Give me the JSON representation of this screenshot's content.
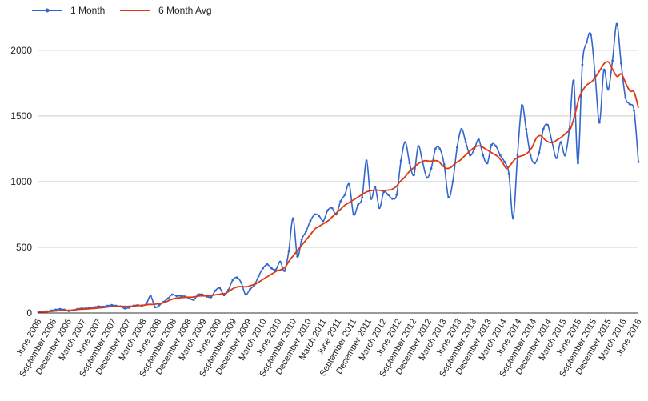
{
  "chart_data": {
    "type": "line",
    "title": "",
    "xlabel": "",
    "ylabel": "",
    "ylim": [
      0,
      2200
    ],
    "yticks": [
      0,
      500,
      1000,
      1500,
      2000
    ],
    "grid": true,
    "legend_position": "top-left",
    "x_tick_labels": [
      "June 2006",
      "September 2006",
      "December 2006",
      "March 2007",
      "June 2007",
      "September 2007",
      "December 2007",
      "March 2008",
      "June 2008",
      "September 2008",
      "December 2008",
      "March 2009",
      "June 2009",
      "September 2009",
      "December 2009",
      "March 2010",
      "June 2010",
      "September 2010",
      "December 2010",
      "March 2011",
      "June 2011",
      "September 2011",
      "December 2011",
      "March 2012",
      "June 2012",
      "September 2012",
      "December 2012",
      "March 2013",
      "June 2013",
      "September 2013",
      "December 2013",
      "March 2014",
      "June 2014",
      "September 2014",
      "December 2014",
      "March 2015",
      "June 2015",
      "September 2015",
      "December 2015",
      "March 2016",
      "June 2016"
    ],
    "series": [
      {
        "name": "1 Month",
        "color": "#3366cc",
        "values": [
          5,
          10,
          12,
          18,
          25,
          30,
          25,
          15,
          20,
          30,
          35,
          35,
          40,
          45,
          50,
          48,
          55,
          60,
          55,
          50,
          35,
          40,
          55,
          60,
          55,
          70,
          130,
          45,
          60,
          85,
          110,
          140,
          130,
          130,
          125,
          110,
          100,
          140,
          140,
          125,
          120,
          170,
          190,
          135,
          175,
          250,
          270,
          230,
          140,
          180,
          210,
          280,
          340,
          370,
          340,
          330,
          390,
          320,
          470,
          720,
          430,
          560,
          620,
          700,
          750,
          740,
          700,
          780,
          800,
          750,
          850,
          900,
          980,
          750,
          820,
          880,
          1160,
          870,
          960,
          800,
          920,
          900,
          870,
          900,
          1160,
          1300,
          1140,
          1050,
          1270,
          1150,
          1030,
          1100,
          1250,
          1250,
          1130,
          880,
          1000,
          1260,
          1400,
          1300,
          1200,
          1250,
          1320,
          1200,
          1140,
          1280,
          1270,
          1200,
          1150,
          1060,
          720,
          1200,
          1580,
          1400,
          1200,
          1140,
          1220,
          1400,
          1430,
          1300,
          1180,
          1300,
          1200,
          1400,
          1770,
          1140,
          1890,
          2060,
          2120,
          1800,
          1450,
          1850,
          1700,
          1920,
          2200,
          1900,
          1640,
          1590,
          1540,
          1150
        ]
      },
      {
        "name": "6 Month Avg",
        "color": "#dc3912",
        "values": [
          5,
          8,
          10,
          12,
          15,
          18,
          20,
          20,
          22,
          25,
          28,
          30,
          32,
          35,
          38,
          40,
          45,
          48,
          50,
          50,
          50,
          50,
          52,
          55,
          58,
          60,
          65,
          65,
          70,
          75,
          85,
          100,
          110,
          115,
          118,
          120,
          120,
          125,
          130,
          130,
          130,
          135,
          140,
          145,
          150,
          170,
          190,
          200,
          200,
          200,
          210,
          220,
          240,
          260,
          280,
          300,
          320,
          330,
          350,
          400,
          440,
          480,
          520,
          560,
          600,
          640,
          660,
          680,
          700,
          730,
          760,
          790,
          820,
          840,
          860,
          880,
          900,
          920,
          930,
          935,
          935,
          930,
          935,
          940,
          960,
          1000,
          1030,
          1070,
          1100,
          1130,
          1150,
          1160,
          1155,
          1160,
          1155,
          1120,
          1100,
          1110,
          1140,
          1160,
          1190,
          1220,
          1250,
          1270,
          1270,
          1250,
          1230,
          1210,
          1190,
          1150,
          1100,
          1130,
          1170,
          1190,
          1200,
          1220,
          1260,
          1330,
          1350,
          1320,
          1300,
          1300,
          1320,
          1340,
          1370,
          1400,
          1500,
          1630,
          1700,
          1740,
          1760,
          1800,
          1850,
          1900,
          1910,
          1850,
          1800,
          1820,
          1750,
          1690,
          1680,
          1560
        ]
      }
    ]
  }
}
